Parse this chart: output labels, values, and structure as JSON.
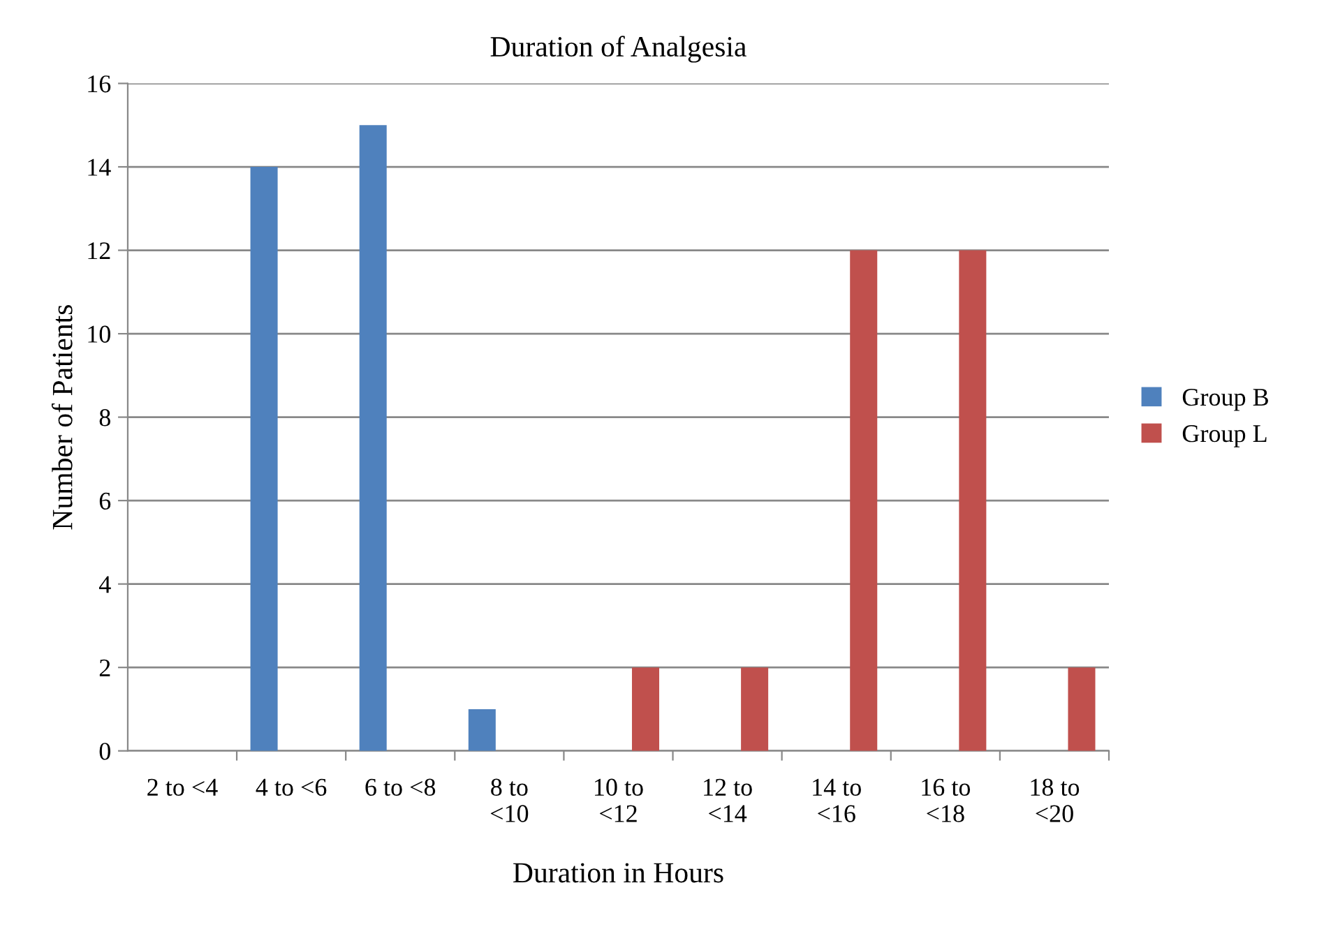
{
  "chart_data": {
    "type": "bar",
    "title": "Duration of Analgesia",
    "xlabel": "Duration in Hours",
    "ylabel": "Number of Patients",
    "categories": [
      "2 to <4",
      "4 to <6",
      "6 to <8",
      "8 to <10",
      "10 to <12",
      "12 to <14",
      "14 to <16",
      "16 to <18",
      "18 to <20"
    ],
    "series": [
      {
        "name": "Group B",
        "color": "#4f81bd",
        "values": [
          0,
          14,
          15,
          1,
          0,
          0,
          0,
          0,
          0
        ]
      },
      {
        "name": "Group L",
        "color": "#c0504d",
        "values": [
          0,
          0,
          0,
          0,
          2,
          2,
          12,
          12,
          2
        ]
      }
    ],
    "ylim": [
      0,
      16
    ],
    "yticks": [
      0,
      2,
      4,
      6,
      8,
      10,
      12,
      14,
      16
    ],
    "grid": "y",
    "legend": "right"
  }
}
